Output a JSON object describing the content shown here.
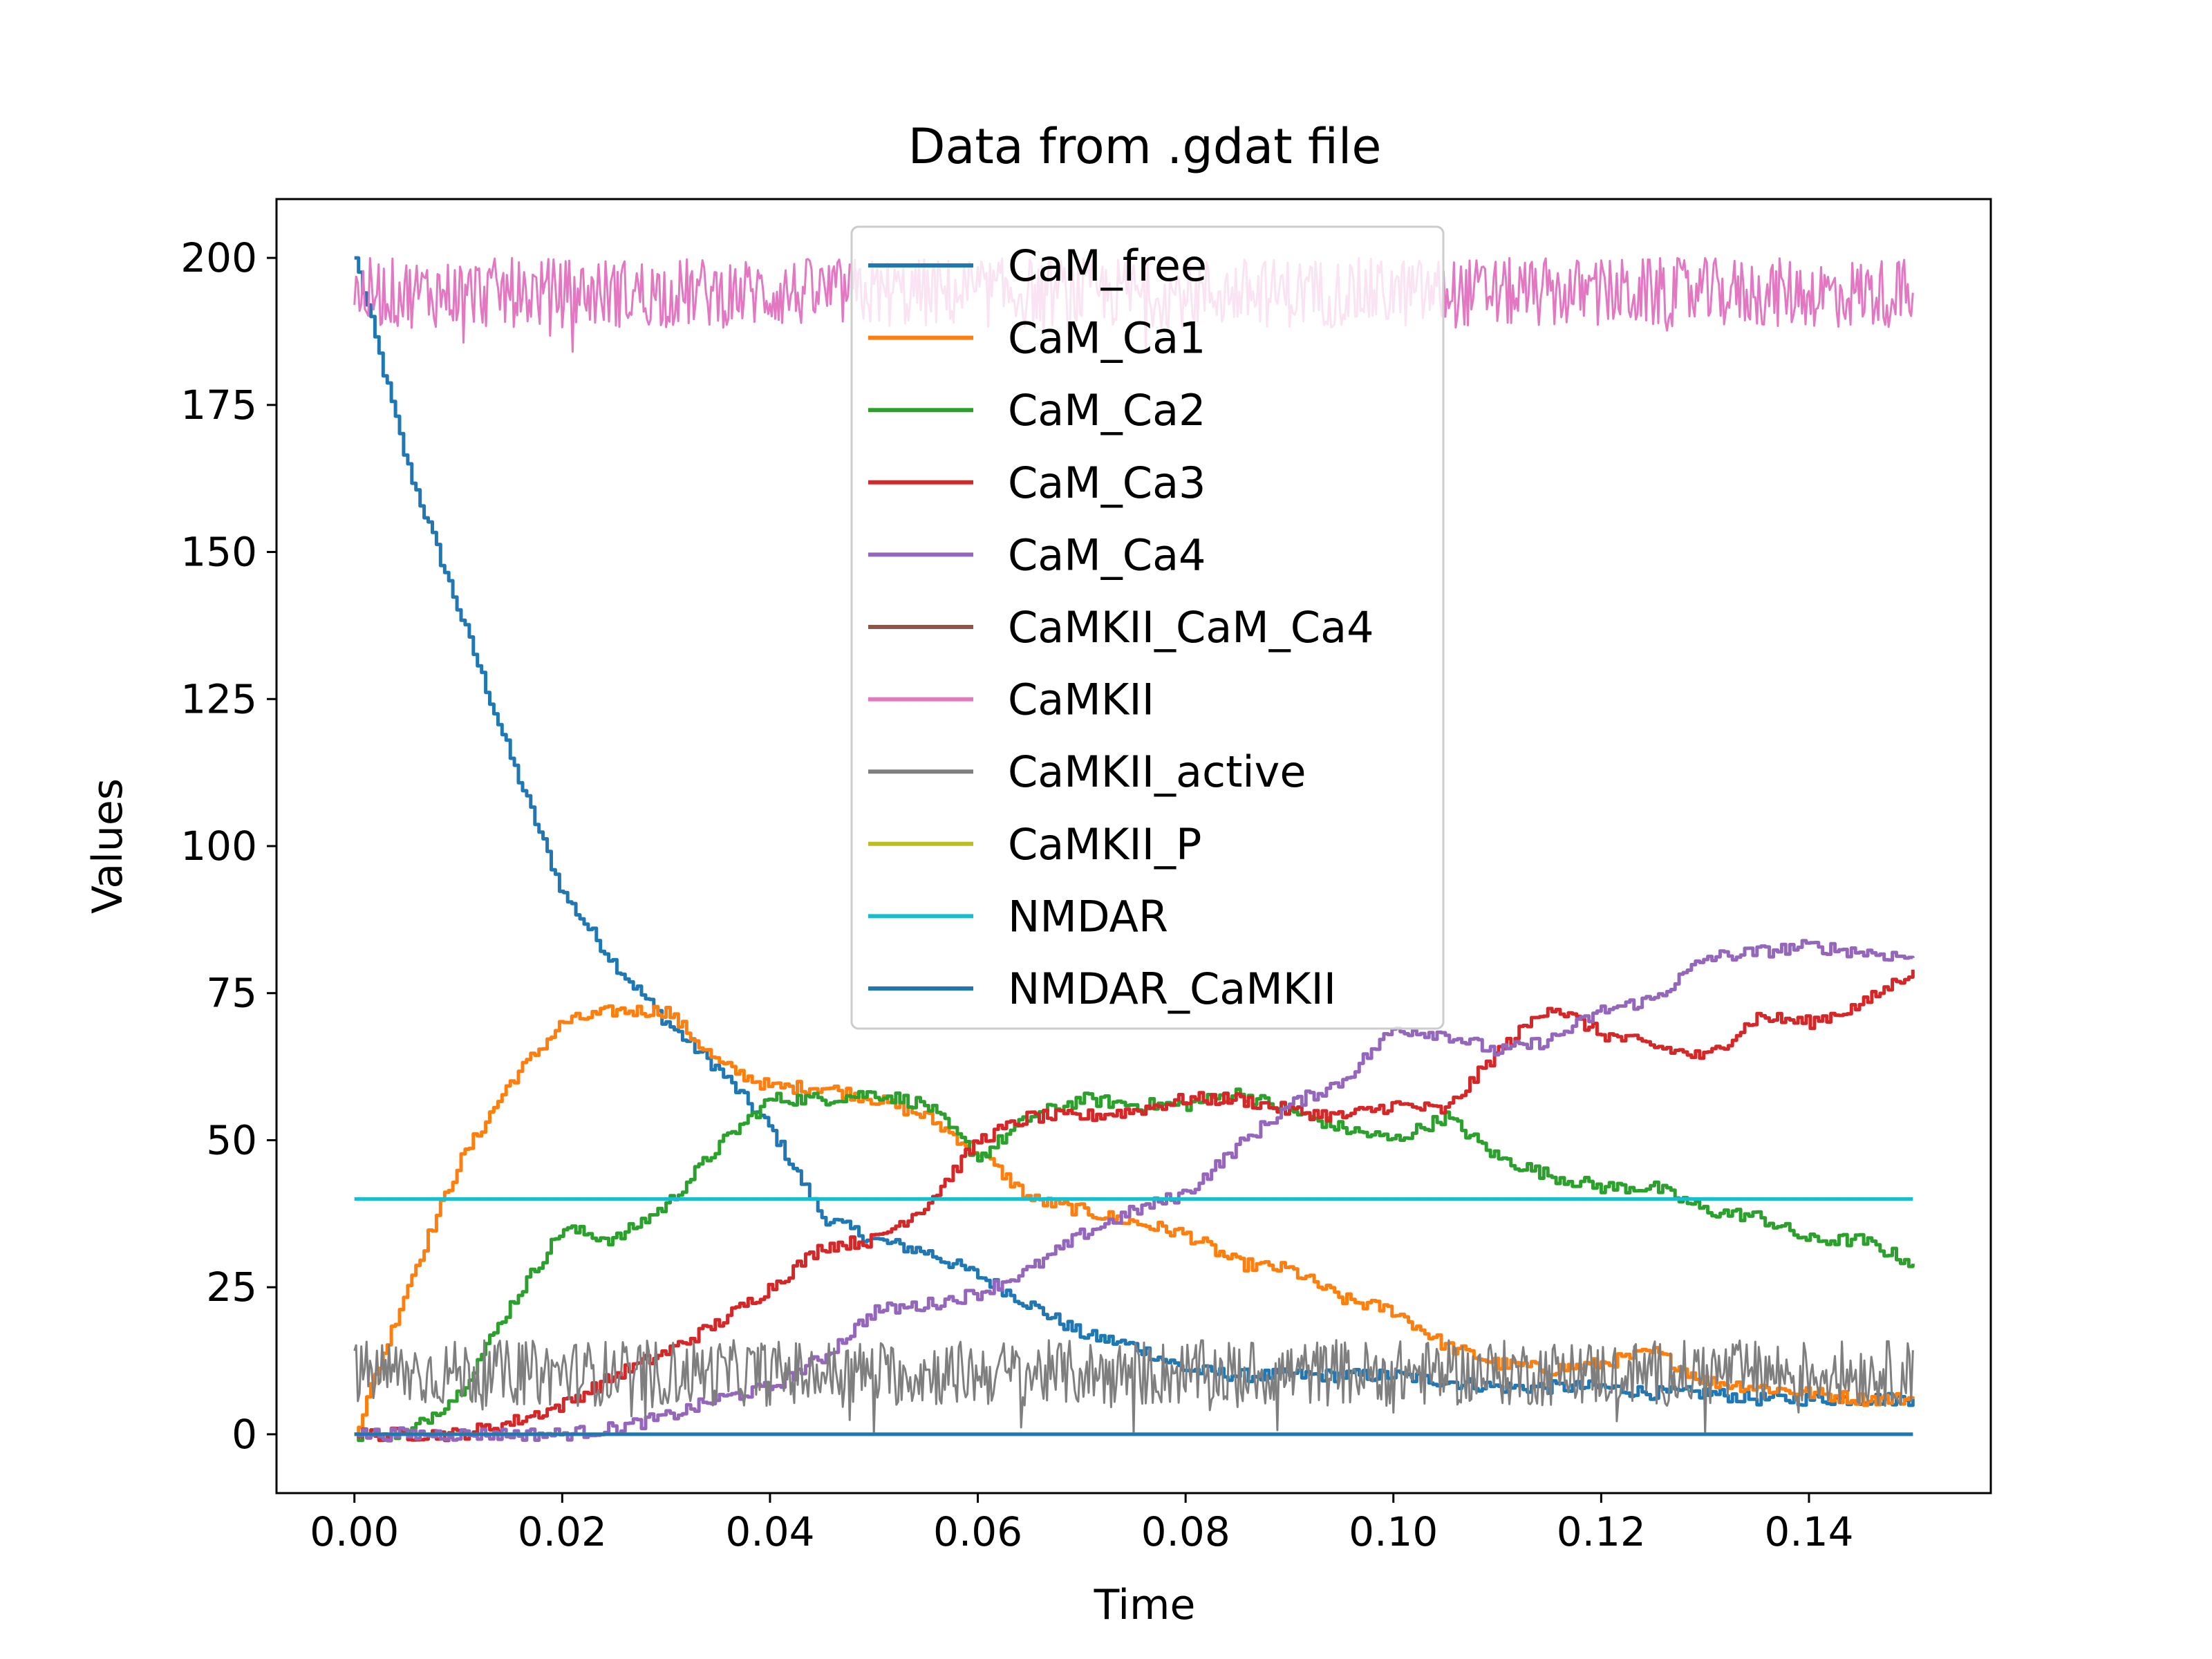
{
  "chart_data": {
    "type": "line",
    "title": "Data from .gdat file",
    "xlabel": "Time",
    "ylabel": "Values",
    "xlim": [
      -0.0075,
      0.1575
    ],
    "ylim": [
      -10,
      210
    ],
    "xticks": [
      0.0,
      0.02,
      0.04,
      0.06,
      0.08,
      0.1,
      0.12,
      0.14
    ],
    "xtick_labels": [
      "0.00",
      "0.02",
      "0.04",
      "0.06",
      "0.08",
      "0.10",
      "0.12",
      "0.14"
    ],
    "yticks": [
      0,
      25,
      50,
      75,
      100,
      125,
      150,
      175,
      200
    ],
    "ytick_labels": [
      "0",
      "25",
      "50",
      "75",
      "100",
      "125",
      "150",
      "175",
      "200"
    ],
    "grid": false,
    "legend_position": "upper center",
    "x": [
      0.0,
      0.005,
      0.01,
      0.015,
      0.02,
      0.025,
      0.03,
      0.035,
      0.04,
      0.045,
      0.05,
      0.055,
      0.06,
      0.065,
      0.07,
      0.075,
      0.08,
      0.085,
      0.09,
      0.095,
      0.1,
      0.105,
      0.11,
      0.115,
      0.12,
      0.125,
      0.13,
      0.135,
      0.14,
      0.145,
      0.15
    ],
    "series": [
      {
        "name": "CaM_free",
        "color": "#1f77b4",
        "values": [
          200,
          165,
          140,
          115,
          92,
          80,
          70,
          62,
          52,
          37,
          33,
          31,
          27,
          22,
          17,
          15,
          11,
          10,
          10,
          10,
          10,
          9,
          8,
          8,
          8,
          7,
          7,
          6,
          6,
          6,
          6
        ]
      },
      {
        "name": "CaM_Ca1",
        "color": "#ff7f0e",
        "values": [
          0,
          25,
          46,
          60,
          70,
          72,
          72,
          63,
          59,
          59,
          57,
          54,
          48,
          40,
          38,
          36,
          34,
          29,
          28,
          23,
          21,
          15,
          12,
          11,
          12,
          14,
          9,
          8,
          7,
          6,
          6
        ]
      },
      {
        "name": "CaM_Ca2",
        "color": "#2ca02c",
        "values": [
          0,
          0,
          7,
          22,
          35,
          33,
          39,
          49,
          57,
          57,
          58,
          56,
          47,
          54,
          57,
          56,
          56,
          58,
          55,
          52,
          50,
          54,
          47,
          44,
          42,
          42,
          38,
          37,
          33,
          33,
          29
        ]
      },
      {
        "name": "CaM_Ca3",
        "color": "#d62728",
        "values": [
          0,
          0,
          0,
          2,
          5,
          10,
          14,
          19,
          25,
          32,
          33,
          39,
          50,
          54,
          54,
          55,
          57,
          57,
          55,
          54,
          56,
          55,
          65,
          73,
          68,
          66,
          64,
          71,
          70,
          73,
          79
        ]
      },
      {
        "name": "CaM_Ca4",
        "color": "#9467bd",
        "values": [
          0,
          0,
          0,
          0,
          0,
          1,
          3,
          6,
          8,
          13,
          21,
          22,
          24,
          28,
          34,
          38,
          41,
          49,
          56,
          60,
          69,
          68,
          65,
          67,
          72,
          74,
          81,
          82,
          83,
          82,
          81
        ]
      },
      {
        "name": "CaMKII_CaM_Ca4",
        "color": "#8c564b",
        "values": [
          0,
          0,
          0,
          0,
          0,
          0,
          0,
          0,
          0,
          0,
          0,
          0,
          0,
          0,
          0,
          0,
          0,
          0,
          0,
          0,
          0,
          0,
          0,
          0,
          0,
          0,
          0,
          0,
          0,
          0,
          0
        ]
      },
      {
        "name": "CaMKII",
        "color": "#e377c2",
        "values": [
          195,
          195,
          195,
          195,
          195,
          195,
          195,
          195,
          195,
          195,
          195,
          195,
          195,
          195,
          195,
          195,
          195,
          195,
          195,
          195,
          195,
          195,
          195,
          195,
          195,
          195,
          195,
          195,
          195,
          195,
          195
        ]
      },
      {
        "name": "CaMKII_active",
        "color": "#7f7f7f",
        "values": [
          5,
          5,
          5,
          5,
          5,
          5,
          5,
          5,
          5,
          5,
          5,
          5,
          5,
          5,
          5,
          5,
          5,
          5,
          5,
          5,
          5,
          5,
          5,
          5,
          5,
          5,
          5,
          5,
          5,
          5,
          5
        ]
      },
      {
        "name": "CaMKII_P",
        "color": "#bcbd22",
        "values": [
          0,
          0,
          0,
          0,
          0,
          0,
          0,
          0,
          0,
          0,
          0,
          0,
          0,
          0,
          0,
          0,
          0,
          0,
          0,
          0,
          0,
          0,
          0,
          0,
          0,
          0,
          0,
          0,
          0,
          0,
          0
        ]
      },
      {
        "name": "NMDAR",
        "color": "#17becf",
        "values": [
          40,
          40,
          40,
          40,
          40,
          40,
          40,
          40,
          40,
          40,
          40,
          40,
          40,
          40,
          40,
          40,
          40,
          40,
          40,
          40,
          40,
          40,
          40,
          40,
          40,
          40,
          40,
          40,
          40,
          40,
          40
        ]
      },
      {
        "name": "NMDAR_CaMKII",
        "color": "#1f77b4",
        "values": [
          0,
          0,
          0,
          0,
          0,
          0,
          0,
          0,
          0,
          0,
          0,
          0,
          0,
          0,
          0,
          0,
          0,
          0,
          0,
          0,
          0,
          0,
          0,
          0,
          0,
          0,
          0,
          0,
          0,
          0,
          0
        ]
      }
    ],
    "noise": {
      "CaMKII": {
        "min": 183,
        "max": 200
      },
      "CaMKII_active": {
        "min": 0,
        "max": 16
      }
    }
  }
}
